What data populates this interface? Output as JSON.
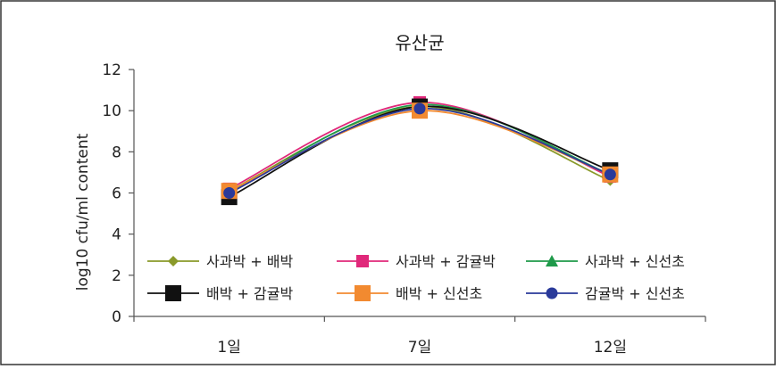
{
  "chart_data": {
    "type": "line",
    "title": "유산균",
    "xlabel": "",
    "ylabel": "log10 cfu/ml content",
    "categories": [
      "1일",
      "7일",
      "12일"
    ],
    "ylim": [
      0,
      12
    ],
    "yticks": [
      "0",
      "2",
      "4",
      "6",
      "8",
      "10",
      "12"
    ],
    "grid": false,
    "legend_position": "inside-bottom",
    "series": [
      {
        "name": "사과박 + 배박",
        "values": [
          6.1,
          10.2,
          6.6
        ],
        "color": "#8a9a2a",
        "marker": "diamond"
      },
      {
        "name": "사과박 + 감귤박",
        "values": [
          6.2,
          10.4,
          6.8
        ],
        "color": "#e0287a",
        "marker": "square"
      },
      {
        "name": "사과박 + 신선초",
        "values": [
          6.0,
          10.3,
          6.9
        ],
        "color": "#1f9a4a",
        "marker": "triangle"
      },
      {
        "name": "배박 + 감귤박",
        "values": [
          5.8,
          10.2,
          7.1
        ],
        "color": "#111111",
        "marker": "square-large"
      },
      {
        "name": "배박 + 신선초",
        "values": [
          6.1,
          10.0,
          6.9
        ],
        "color": "#f28a30",
        "marker": "square-large"
      },
      {
        "name": "감귤박 + 신선초",
        "values": [
          6.0,
          10.1,
          6.9
        ],
        "color": "#2a3a9a",
        "marker": "circle"
      }
    ]
  }
}
